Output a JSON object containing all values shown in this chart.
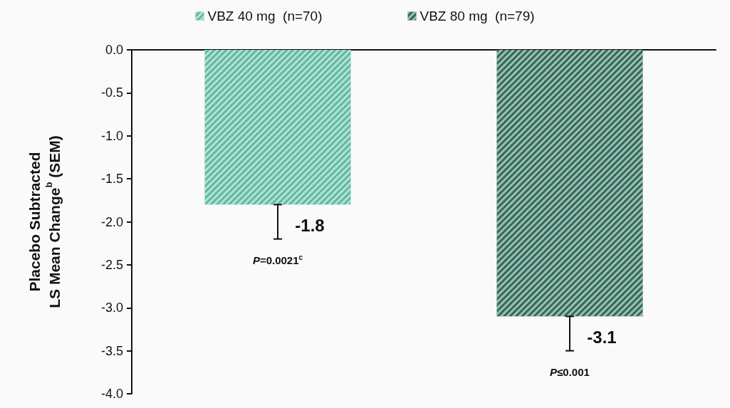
{
  "chart_data": {
    "type": "bar",
    "ylabel": "Placebo Subtracted\nLS Mean Change$^{b}$ (SEM)",
    "categories": [
      null,
      null
    ],
    "series": [
      {
        "name": "VBZ 40 mg  (n=70)",
        "color": "#5dbb9f",
        "values": [
          -1.8,
          null
        ],
        "errors": [
          [
            -2.2,
            -1.8
          ],
          null
        ]
      },
      {
        "name": "VBZ 80 mg  (n=79)",
        "color": "#2e6b59",
        "values": [
          null,
          -3.1
        ],
        "errors": [
          null,
          [
            -3.5,
            -3.1
          ]
        ]
      }
    ],
    "ylim": [
      -4.0,
      0.0
    ],
    "yticks": [
      {
        "value": -4,
        "label": "-4.0"
      },
      {
        "value": -3.5,
        "label": "-3.5"
      },
      {
        "value": -3,
        "label": "-3.0"
      },
      {
        "value": -2.5,
        "label": "-2.5"
      },
      {
        "value": -2,
        "label": "-2.0"
      },
      {
        "value": -1.5,
        "label": "-1.5"
      },
      {
        "value": -1,
        "label": "-1.0"
      },
      {
        "value": -0.5,
        "label": "-0.5"
      },
      {
        "value": 0,
        "label": "0.0"
      }
    ],
    "data_labels": true,
    "grid": false,
    "legend": "top",
    "annotations": [
      "P=0.0021$^{c}$",
      "P≤0.001"
    ]
  }
}
